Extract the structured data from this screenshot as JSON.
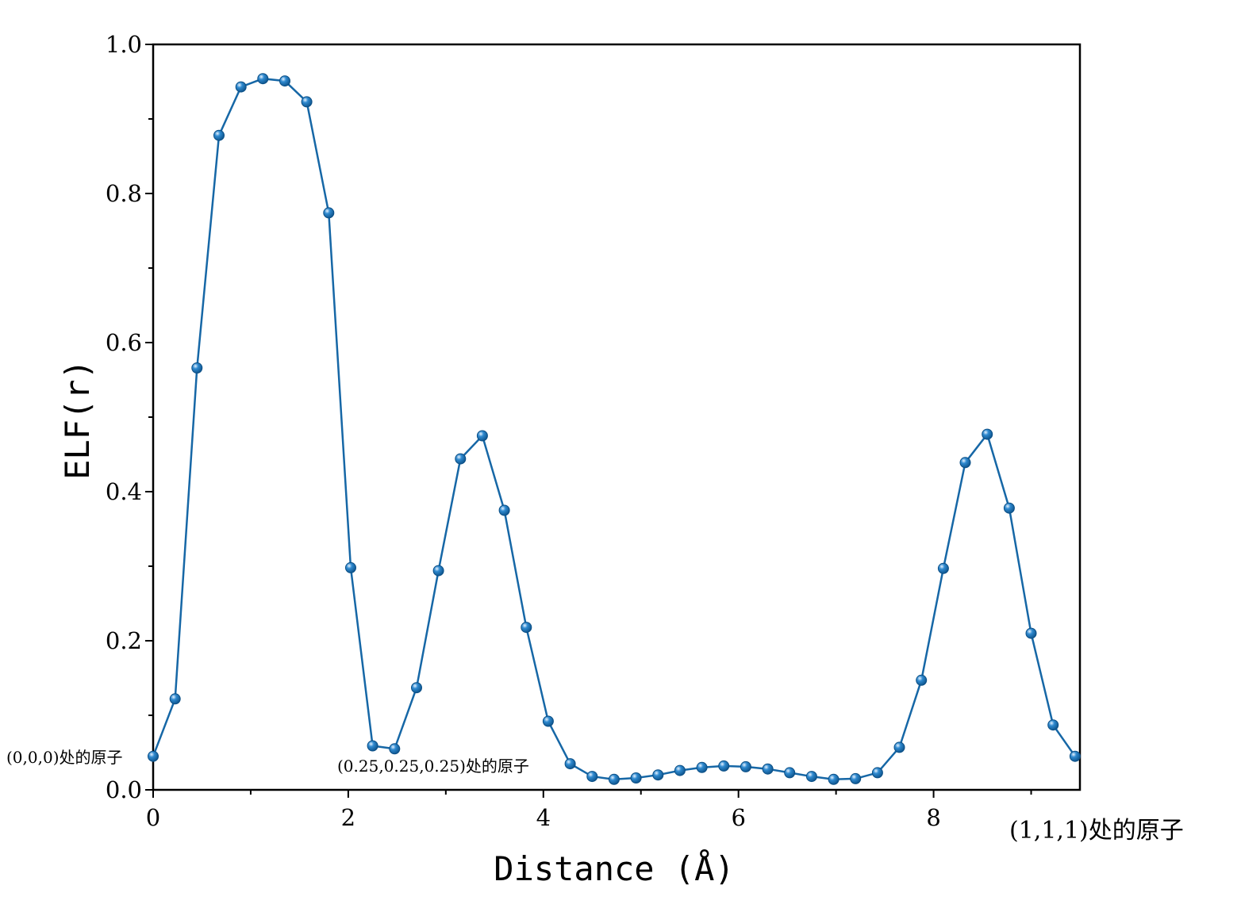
{
  "chart_data": {
    "type": "line",
    "title": "",
    "xlabel": "Distance (Å)",
    "ylabel": "ELF(r)",
    "xlim": [
      0,
      9.5
    ],
    "ylim": [
      0,
      1.0
    ],
    "x_ticks": [
      "0",
      "2",
      "4",
      "6",
      "8"
    ],
    "y_ticks": [
      "0.0",
      "0.2",
      "0.4",
      "0.6",
      "0.8",
      "1.0"
    ],
    "grid": false,
    "legend": "none",
    "color": "#1667a6",
    "series": [
      {
        "x": [
          0,
          0.225,
          0.45,
          0.675,
          0.9,
          1.125,
          1.35,
          1.575,
          1.8,
          2.025,
          2.25,
          2.475,
          2.7,
          2.925,
          3.15,
          3.375,
          3.6,
          3.825,
          4.05,
          4.275,
          4.5,
          4.725,
          4.95,
          5.175,
          5.4,
          5.625,
          5.85,
          6.075,
          6.3,
          6.525,
          6.75,
          6.975,
          7.2,
          7.425,
          7.65,
          7.875,
          8.1,
          8.325,
          8.55,
          8.775,
          9.0,
          9.225,
          9.45
        ],
        "y": [
          0.045,
          0.122,
          0.566,
          0.878,
          0.943,
          0.954,
          0.951,
          0.923,
          0.774,
          0.298,
          0.059,
          0.055,
          0.137,
          0.294,
          0.444,
          0.475,
          0.375,
          0.218,
          0.092,
          0.035,
          0.018,
          0.014,
          0.016,
          0.02,
          0.026,
          0.03,
          0.032,
          0.031,
          0.028,
          0.023,
          0.018,
          0.014,
          0.015,
          0.023,
          0.057,
          0.147,
          0.297,
          0.439,
          0.477,
          0.378,
          0.21,
          0.087,
          0.045
        ]
      }
    ],
    "annotations": [
      {
        "text": "(0,0,0)处的原子"
      },
      {
        "text": "(0.25,0.25,0.25)处的原子"
      },
      {
        "text": "(1,1,1)处的原子"
      }
    ]
  }
}
